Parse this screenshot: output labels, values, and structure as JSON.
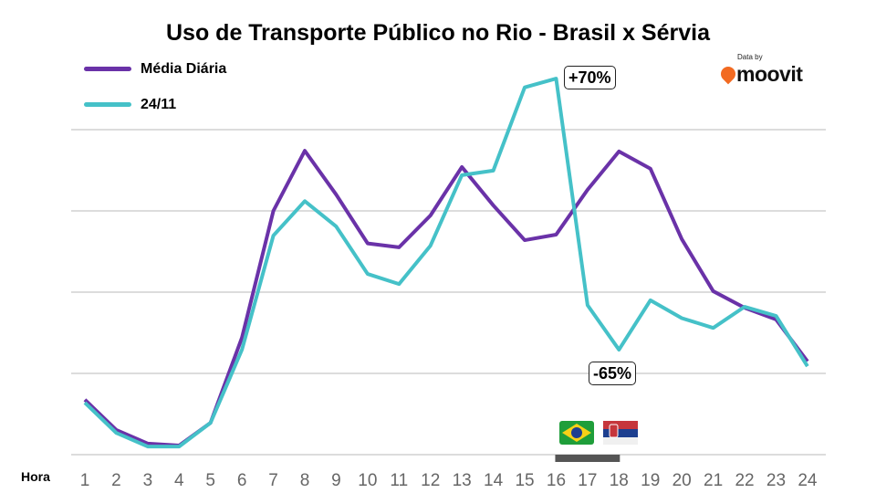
{
  "chart_data": {
    "type": "line",
    "title": "Uso de Transporte Público no Rio - Brasil x Sérvia",
    "xlabel": "Hora",
    "ylabel": "",
    "x": [
      1,
      2,
      3,
      4,
      5,
      6,
      7,
      8,
      9,
      10,
      11,
      12,
      13,
      14,
      15,
      16,
      17,
      18,
      19,
      20,
      21,
      22,
      23,
      24
    ],
    "ylim": [
      0,
      115
    ],
    "grid": true,
    "legend_placement": "top-left",
    "series": [
      {
        "name": "Média Diária",
        "color": "#6a32a8",
        "values": [
          16.9,
          7.6,
          3.4,
          2.8,
          9.8,
          36,
          75,
          93.5,
          80,
          65,
          63.8,
          73.6,
          88.5,
          76.7,
          66,
          67.7,
          81.5,
          93.3,
          88,
          66.3,
          50.3,
          45.2,
          41.6,
          28.7
        ]
      },
      {
        "name": "24/11",
        "color": "#45c1c8",
        "values": [
          16,
          6.7,
          2.5,
          2.5,
          9.8,
          32.3,
          67.4,
          78,
          70.2,
          55.6,
          52.5,
          64.3,
          86,
          87.4,
          113,
          115.7,
          46,
          32.3,
          47.5,
          42,
          39,
          45.5,
          42.7,
          27.2
        ]
      }
    ],
    "annotations": [
      {
        "text": "+70%",
        "x": 16
      },
      {
        "text": "-65%",
        "x": 18
      }
    ],
    "match_period": {
      "from": 16,
      "to": 18,
      "label_icons": [
        "brazil-flag",
        "serbia-flag"
      ]
    }
  },
  "logo": {
    "small": "Data by",
    "word": "moovit"
  }
}
